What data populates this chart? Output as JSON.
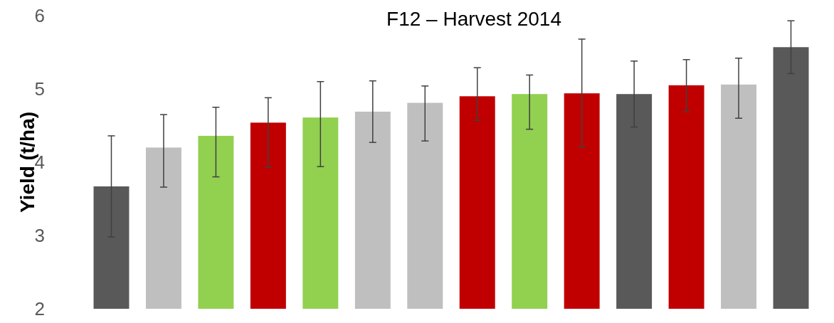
{
  "chart_data": {
    "type": "bar",
    "title": "F12 – Harvest 2014",
    "ylabel": "Yield (t/ha)",
    "categories": [
      null,
      null,
      null,
      null,
      null,
      null,
      null,
      null,
      null,
      null,
      null,
      null,
      null,
      null
    ],
    "values": [
      3.67,
      4.2,
      4.36,
      4.54,
      4.61,
      4.69,
      4.81,
      4.9,
      4.93,
      4.94,
      4.93,
      5.05,
      5.06,
      5.57
    ],
    "colors": [
      "#595959",
      "#bfbfbf",
      "#92d050",
      "#c00000",
      "#92d050",
      "#bfbfbf",
      "#bfbfbf",
      "#c00000",
      "#92d050",
      "#c00000",
      "#595959",
      "#c00000",
      "#bfbfbf",
      "#595959"
    ],
    "errors": [
      [
        2.98,
        4.36
      ],
      [
        3.66,
        4.65
      ],
      [
        3.8,
        4.75
      ],
      [
        3.93,
        4.88
      ],
      [
        3.94,
        5.1
      ],
      [
        4.27,
        5.11
      ],
      [
        4.29,
        5.04
      ],
      [
        4.57,
        5.29
      ],
      [
        4.45,
        5.19
      ],
      [
        4.21,
        5.68
      ],
      [
        4.48,
        5.38
      ],
      [
        4.69,
        5.4
      ],
      [
        4.6,
        5.42
      ],
      [
        5.21,
        5.93
      ]
    ],
    "ylim": [
      2,
      6
    ],
    "yticks": [
      2,
      3,
      4,
      5,
      6
    ],
    "grid": false
  }
}
